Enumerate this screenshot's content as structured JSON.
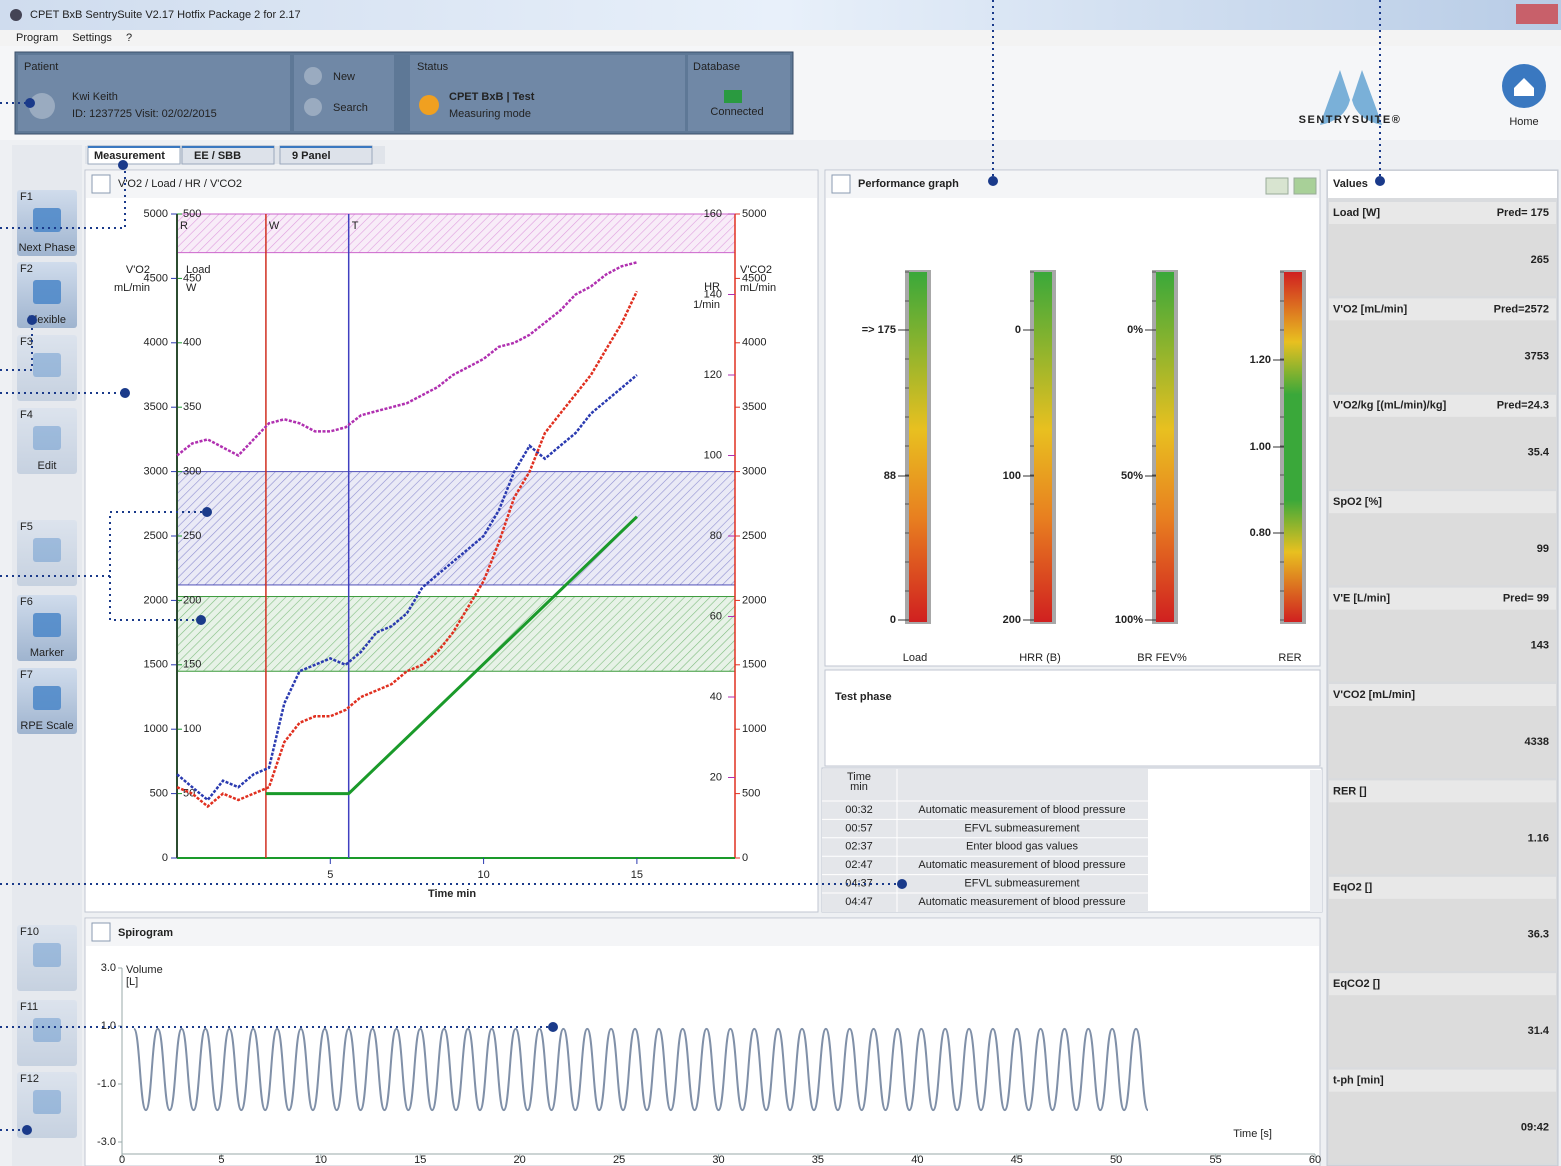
{
  "window": {
    "title": "CPET BxB SentrySuite V2.17 Hotfix Package 2 for 2.17",
    "menu": [
      "Program",
      "Settings",
      "?"
    ]
  },
  "patient": {
    "heading": "Patient",
    "name": "Kwi Keith",
    "details": "ID: 1237725 Visit: 02/02/2015",
    "new": "New",
    "search": "Search"
  },
  "status": {
    "heading": "Status",
    "text": "CPET BxB | Test",
    "mode": "Measuring mode"
  },
  "database": {
    "heading": "Database",
    "state": "Connected"
  },
  "logo": "SENTRYSUITE®",
  "home": "Home",
  "sidebar": [
    {
      "key": "F1",
      "label": "Next Phase"
    },
    {
      "key": "F2",
      "label": "Flexible"
    },
    {
      "key": "F3"
    },
    {
      "key": "F4",
      "label": "Edit"
    },
    {
      "key": "F5"
    },
    {
      "key": "F6",
      "label": "Marker"
    },
    {
      "key": "F7",
      "label": "RPE Scale"
    },
    {
      "key": "F10"
    },
    {
      "key": "F11"
    },
    {
      "key": "F12"
    }
  ],
  "tabs": [
    "Measurement",
    "EE / SBB",
    "9 Panel"
  ],
  "main_chart": {
    "title": "V'O2 / Load / HR / V'CO2",
    "x_label": "Time min",
    "x": [
      0,
      0.5,
      1,
      1.5,
      2,
      2.5,
      3,
      3.5,
      4,
      4.5,
      5,
      5.5,
      6,
      6.5,
      7,
      7.5,
      8,
      8.5,
      9,
      9.5,
      10,
      10.5,
      11,
      11.5,
      12,
      12.5,
      13,
      13.5,
      14,
      14.5,
      15
    ],
    "xlim": [
      0,
      18.2
    ],
    "xticks": [
      5,
      10,
      15
    ],
    "axes": {
      "vo2": {
        "label": [
          "V'O2",
          "mL/min"
        ],
        "lim": [
          0,
          5000
        ],
        "ticks": [
          0,
          500,
          1000,
          1500,
          2000,
          2500,
          3000,
          3500,
          4000,
          4500,
          5000
        ],
        "color": "#2a3ab0"
      },
      "load": {
        "label": [
          "Load",
          "W"
        ],
        "lim": [
          0,
          500
        ],
        "ticks": [
          50,
          100,
          150,
          200,
          250,
          300,
          350,
          400,
          450,
          500
        ],
        "color": "#1a9a2a"
      },
      "hr": {
        "label": [
          "HR",
          "1/min"
        ],
        "lim": [
          0,
          160
        ],
        "ticks": [
          20,
          40,
          60,
          80,
          100,
          120,
          140,
          160
        ],
        "color": "#b030b0"
      },
      "vco2": {
        "label": [
          "V'CO2",
          "mL/min"
        ],
        "lim": [
          0,
          5000
        ],
        "ticks": [
          0,
          500,
          1000,
          1500,
          2000,
          2500,
          3000,
          3500,
          4000,
          4500,
          5000
        ],
        "color": "#e03020"
      }
    },
    "bands": [
      {
        "from": 4700,
        "to": 5000,
        "color": "#cc66cc"
      },
      {
        "from": 2120,
        "to": 3000,
        "color": "#5050b8"
      },
      {
        "from": 1450,
        "to": 2030,
        "color": "#3a9a3a"
      }
    ],
    "markers": [
      {
        "label": "R",
        "x": 0,
        "color": "#333333"
      },
      {
        "label": "W",
        "x": 2.9,
        "color": "#d03020"
      },
      {
        "label": "T",
        "x": 5.6,
        "color": "#4040c0"
      }
    ],
    "series": [
      {
        "axis": "vo2",
        "color": "#2a3ab0",
        "values": [
          650,
          550,
          450,
          600,
          550,
          650,
          700,
          1200,
          1450,
          1500,
          1550,
          1500,
          1600,
          1750,
          1800,
          1900,
          2100,
          2200,
          2300,
          2400,
          2500,
          2700,
          3000,
          3200,
          3100,
          3200,
          3300,
          3450,
          3550,
          3650,
          3750
        ]
      },
      {
        "axis": "vco2",
        "color": "#e03020",
        "values": [
          550,
          500,
          400,
          500,
          450,
          500,
          550,
          900,
          1050,
          1100,
          1100,
          1150,
          1250,
          1300,
          1350,
          1450,
          1500,
          1600,
          1750,
          1950,
          2150,
          2450,
          2800,
          3000,
          3300,
          3450,
          3600,
          3750,
          3950,
          4150,
          4400
        ]
      },
      {
        "axis": "hr",
        "color": "#b030b0",
        "values": [
          100,
          103,
          104,
          102,
          100,
          104,
          108,
          109,
          108,
          106,
          106,
          107,
          110,
          111,
          112,
          113,
          115,
          117,
          120,
          122,
          124,
          127,
          128,
          130,
          133,
          136,
          140,
          142,
          145,
          147,
          148
        ]
      },
      {
        "axis": "load",
        "color": "#1a9a2a",
        "x": [
          2.9,
          5.6,
          15
        ],
        "values": [
          50,
          50,
          265
        ]
      }
    ]
  },
  "performance": {
    "title": "Performance graph",
    "gauges": [
      {
        "label": "Load",
        "ticks": [
          "=> 175",
          "88",
          "0"
        ]
      },
      {
        "label": "HRR (B)",
        "ticks": [
          "0",
          "100",
          "200"
        ]
      },
      {
        "label": "BR FEV%",
        "ticks": [
          "0%",
          "50%",
          "100%"
        ]
      },
      {
        "label": "RER",
        "ticks": [
          "1.20",
          "1.00",
          "0.80"
        ]
      }
    ]
  },
  "test_phase": "Test phase",
  "events": {
    "header": [
      "Time",
      "min"
    ],
    "rows": [
      [
        "00:32",
        "Automatic measurement of blood pressure"
      ],
      [
        "00:57",
        "EFVL submeasurement"
      ],
      [
        "02:37",
        "Enter blood gas values"
      ],
      [
        "02:47",
        "Automatic measurement of blood pressure"
      ],
      [
        "04:37",
        "EFVL submeasurement"
      ],
      [
        "04:47",
        "Automatic measurement of blood pressure"
      ]
    ]
  },
  "spirogram": {
    "title": "Spirogram",
    "y_label": [
      "Volume",
      "[L]"
    ],
    "x_label": "Time [s]",
    "xlim": [
      0,
      60
    ],
    "xticks": [
      0,
      5,
      10,
      15,
      20,
      25,
      30,
      35,
      40,
      45,
      50,
      55,
      60
    ],
    "ylim": [
      -3,
      3
    ],
    "yticks": [
      {
        "value": 3,
        "label": "3.0"
      },
      {
        "value": 1,
        "label": "1.0"
      },
      {
        "value": -1,
        "label": "-1.0"
      },
      {
        "value": -3,
        "label": "-3.0"
      }
    ],
    "color": "#8090a8",
    "t": [
      0.6,
      1.2,
      1.8,
      2.4,
      3,
      3.6,
      4.2,
      4.8,
      5.4,
      6,
      6.6,
      7.2,
      7.8,
      8.4,
      9,
      9.6,
      10.2,
      10.8,
      11.4,
      12,
      12.6,
      13.2,
      13.8,
      14.4,
      15,
      15.6,
      16.2,
      16.8,
      17.4,
      18,
      18.6,
      19.2,
      19.8,
      20.4,
      21,
      21.6,
      22.2,
      22.8,
      23.4,
      24,
      24.6,
      25.2,
      25.8,
      26.4,
      27,
      27.6,
      28.2,
      28.8,
      29.4,
      30,
      30.6,
      31.2,
      31.8,
      32.4,
      33,
      33.6,
      34.2,
      34.8,
      35.4,
      36,
      36.6,
      37.2,
      37.8,
      38.4,
      39,
      39.6,
      40.2,
      40.8,
      41.4,
      42,
      42.6,
      43.2,
      43.8,
      44.4,
      45,
      45.6,
      46.2,
      46.8,
      47.4,
      48,
      48.6,
      49.2,
      49.8,
      50.4,
      51,
      51.6
    ],
    "values": [
      0.9,
      -1.9,
      0.9,
      -1.9,
      0.9,
      -1.9,
      0.9,
      -1.9,
      0.9,
      -1.9,
      0.9,
      -1.9,
      0.9,
      -1.9,
      0.9,
      -1.9,
      0.9,
      -1.9,
      0.9,
      -1.9,
      0.9,
      -1.9,
      0.9,
      -1.9,
      0.9,
      -1.9,
      0.9,
      -1.9,
      0.9,
      -1.9,
      0.9,
      -1.9,
      0.9,
      -1.9,
      0.9,
      -1.9,
      0.9,
      -1.9,
      0.9,
      -1.9,
      0.9,
      -1.9,
      0.9,
      -1.9,
      0.9,
      -1.9,
      0.9,
      -1.9,
      0.9,
      -1.9,
      0.9,
      -1.9,
      0.9,
      -1.9,
      0.9,
      -1.9,
      0.9,
      -1.9,
      0.9,
      -1.9,
      0.9,
      -1.9,
      0.9,
      -1.9,
      0.9,
      -1.9,
      0.9,
      -1.9,
      0.9,
      -1.9,
      0.9,
      -1.9,
      0.9,
      -1.9,
      0.9,
      -1.9,
      0.9,
      -1.9,
      0.9,
      -1.9,
      0.9,
      -1.9,
      0.9,
      -1.9,
      0.9,
      -1.9
    ]
  },
  "values": {
    "title": "Values",
    "items": [
      {
        "label": "Load [W]",
        "pred": "Pred= 175",
        "value": "265"
      },
      {
        "label": "V'O2 [mL/min]",
        "pred": "Pred=2572",
        "value": "3753"
      },
      {
        "label": "V'O2/kg [(mL/min)/kg]",
        "pred": "Pred=24.3",
        "value": "35.4"
      },
      {
        "label": "SpO2 [%]",
        "value": "99"
      },
      {
        "label": "V'E [L/min]",
        "pred": "Pred= 99",
        "value": "143"
      },
      {
        "label": "V'CO2 [mL/min]",
        "value": "4338"
      },
      {
        "label": "RER []",
        "value": "1.16"
      },
      {
        "label": "EqO2 []",
        "value": "36.3"
      },
      {
        "label": "EqCO2 []",
        "value": "31.4"
      },
      {
        "label": "t-ph [min]",
        "value": "09:42"
      }
    ]
  }
}
